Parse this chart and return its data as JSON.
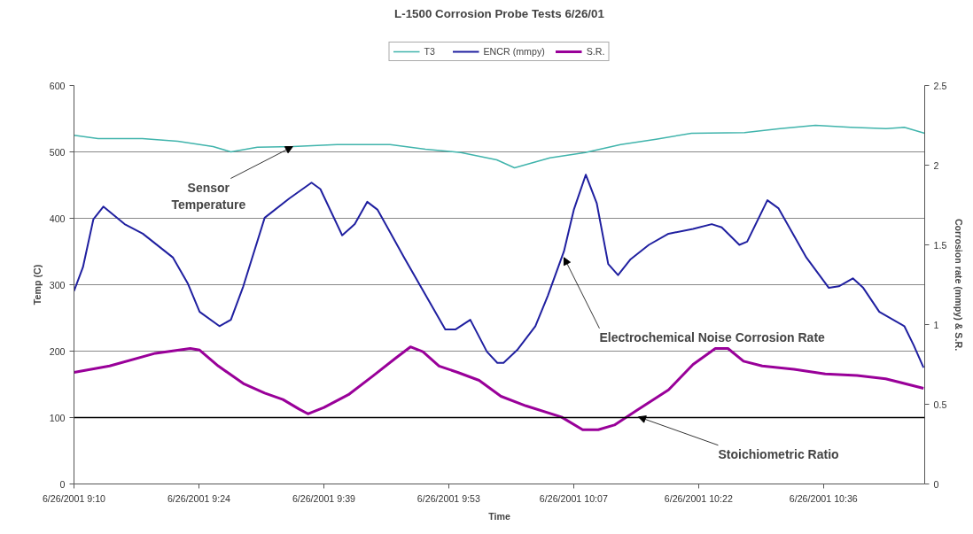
{
  "chart_data": {
    "type": "line",
    "title": "L-1500 Corrosion Probe Tests 6/26/01",
    "xlabel": "Time",
    "ylabel": "Temp (C)",
    "y2label": "Corrosion rate (mmpy) & S.R.",
    "xlim": [
      "2001-06-26T09:10:00",
      "2001-06-26T10:48:04"
    ],
    "ylim": [
      0,
      600
    ],
    "y2lim": [
      0,
      2.5
    ],
    "xticks": [
      {
        "value": "2001-06-26T09:10:00",
        "label": "6/26/2001 9:10"
      },
      {
        "value": "2001-06-26T09:24:24",
        "label": "6/26/2001 9:24"
      },
      {
        "value": "2001-06-26T09:38:48",
        "label": "6/26/2001 9:39"
      },
      {
        "value": "2001-06-26T09:53:12",
        "label": "6/26/2001 9:53"
      },
      {
        "value": "2001-06-26T10:07:36",
        "label": "6/26/2001 10:07"
      },
      {
        "value": "2001-06-26T10:22:00",
        "label": "6/26/2001 10:22"
      },
      {
        "value": "2001-06-26T10:36:24",
        "label": "6/26/2001 10:36"
      }
    ],
    "yticks": [
      0,
      100,
      200,
      300,
      400,
      500,
      600
    ],
    "y2ticks": [
      0,
      0.5,
      1,
      1.5,
      2,
      2.5
    ],
    "grid": "y",
    "legend": "top",
    "ref_lines": [
      {
        "axis": "y",
        "value": 100,
        "label": null,
        "color": "#000000"
      }
    ],
    "series": [
      {
        "name": "T3",
        "color": "#40b4ac",
        "x": [
          "2001-06-26T09:10:00",
          "2001-06-26T09:12:47",
          "2001-06-26T09:17:53",
          "2001-06-26T09:21:58",
          "2001-06-26T09:26:02",
          "2001-06-26T09:28:05",
          "2001-06-26T09:31:08",
          "2001-06-26T09:35:13",
          "2001-06-26T09:40:19",
          "2001-06-26T09:46:26",
          "2001-06-26T09:50:31",
          "2001-06-26T09:54:36",
          "2001-06-26T09:58:44",
          "2001-06-26T10:00:47",
          "2001-06-26T10:04:52",
          "2001-06-26T10:08:56",
          "2001-06-26T10:13:01",
          "2001-06-26T10:17:06",
          "2001-06-26T10:21:11",
          "2001-06-26T10:27:18",
          "2001-06-26T10:31:23",
          "2001-06-26T10:35:28",
          "2001-06-26T10:39:32",
          "2001-06-26T10:43:37",
          "2001-06-26T10:45:43",
          "2001-06-26T10:48:04"
        ],
        "values": [
          525,
          520,
          520,
          516,
          508,
          500,
          507,
          508,
          511,
          511,
          504,
          499,
          488,
          476,
          491,
          499,
          511,
          519,
          528,
          529,
          535,
          540,
          537,
          535,
          537,
          528
        ]
      },
      {
        "name": "ENCR (mmpy)",
        "color": "#2020a0",
        "axis": "y2",
        "x": [
          "2001-06-26T09:10:00",
          "2001-06-26T09:11:02",
          "2001-06-26T09:12:14",
          "2001-06-26T09:13:23",
          "2001-06-26T09:15:50",
          "2001-06-26T09:17:56",
          "2001-06-26T09:21:25",
          "2001-06-26T09:23:06",
          "2001-06-26T09:24:29",
          "2001-06-26T09:26:46",
          "2001-06-26T09:28:05",
          "2001-06-26T09:29:31",
          "2001-06-26T09:31:59",
          "2001-06-26T09:34:48",
          "2001-06-26T09:37:23",
          "2001-06-26T09:38:24",
          "2001-06-26T09:40:55",
          "2001-06-26T09:42:22",
          "2001-06-26T09:43:48",
          "2001-06-26T09:45:00",
          "2001-06-26T09:48:04",
          "2001-06-26T09:52:48",
          "2001-06-26T09:54:00",
          "2001-06-26T09:55:41",
          "2001-06-26T09:57:36",
          "2001-06-26T09:58:48",
          "2001-06-26T09:59:31",
          "2001-06-26T10:01:05",
          "2001-06-26T10:03:11",
          "2001-06-26T10:04:37",
          "2001-06-26T10:06:29",
          "2001-06-26T10:07:37",
          "2001-06-26T10:09:00",
          "2001-06-26T10:10:16",
          "2001-06-26T10:11:35",
          "2001-06-26T10:12:43",
          "2001-06-26T10:14:10",
          "2001-06-26T10:16:16",
          "2001-06-26T10:18:32",
          "2001-06-26T10:21:22",
          "2001-06-26T10:23:31",
          "2001-06-26T10:24:40",
          "2001-06-26T10:26:42",
          "2001-06-26T10:27:36",
          "2001-06-26T10:29:56",
          "2001-06-26T10:31:12",
          "2001-06-26T10:34:26",
          "2001-06-26T10:37:01",
          "2001-06-26T10:38:10",
          "2001-06-26T10:39:47",
          "2001-06-26T10:40:59",
          "2001-06-26T10:42:50",
          "2001-06-26T10:45:43",
          "2001-06-26T10:46:48",
          "2001-06-26T10:47:56"
        ],
        "values": [
          1.21,
          1.36,
          1.66,
          1.74,
          1.63,
          1.57,
          1.42,
          1.26,
          1.08,
          0.99,
          1.03,
          1.24,
          1.67,
          1.79,
          1.89,
          1.85,
          1.56,
          1.63,
          1.77,
          1.72,
          1.42,
          0.97,
          0.97,
          1.03,
          0.83,
          0.76,
          0.76,
          0.84,
          0.99,
          1.18,
          1.46,
          1.72,
          1.94,
          1.76,
          1.38,
          1.31,
          1.41,
          1.5,
          1.57,
          1.6,
          1.63,
          1.61,
          1.5,
          1.52,
          1.78,
          1.73,
          1.42,
          1.23,
          1.24,
          1.29,
          1.23,
          1.08,
          0.99,
          0.87,
          0.73
        ]
      },
      {
        "name": "S.R.",
        "color": "#990099",
        "axis": "y2",
        "x": [
          "2001-06-26T09:10:00",
          "2001-06-26T09:14:06",
          "2001-06-26T09:19:23",
          "2001-06-26T09:23:24",
          "2001-06-26T09:24:29",
          "2001-06-26T09:26:38",
          "2001-06-26T09:29:31",
          "2001-06-26T09:31:59",
          "2001-06-26T09:34:05",
          "2001-06-26T09:35:56",
          "2001-06-26T09:36:58",
          "2001-06-26T09:38:49",
          "2001-06-26T09:41:38",
          "2001-06-26T09:44:31",
          "2001-06-26T09:47:06",
          "2001-06-26T09:48:47",
          "2001-06-26T09:50:13",
          "2001-06-26T09:52:05",
          "2001-06-26T09:54:14",
          "2001-06-26T09:56:42",
          "2001-06-26T09:59:13",
          "2001-06-26T10:02:06",
          "2001-06-26T10:06:11",
          "2001-06-26T10:08:38",
          "2001-06-26T10:10:26",
          "2001-06-26T10:12:18",
          "2001-06-26T10:14:49",
          "2001-06-26T10:18:32",
          "2001-06-26T10:21:22",
          "2001-06-26T10:23:56",
          "2001-06-26T10:25:23",
          "2001-06-26T10:27:11",
          "2001-06-26T10:29:20",
          "2001-06-26T10:33:00",
          "2001-06-26T10:36:36",
          "2001-06-26T10:40:16",
          "2001-06-26T10:43:34",
          "2001-06-26T10:47:56"
        ],
        "values": [
          0.7,
          0.74,
          0.82,
          0.85,
          0.84,
          0.74,
          0.63,
          0.57,
          0.53,
          0.47,
          0.44,
          0.48,
          0.56,
          0.68,
          0.79,
          0.86,
          0.83,
          0.74,
          0.7,
          0.65,
          0.55,
          0.49,
          0.42,
          0.34,
          0.34,
          0.37,
          0.46,
          0.59,
          0.75,
          0.85,
          0.85,
          0.77,
          0.74,
          0.72,
          0.69,
          0.68,
          0.66,
          0.6
        ]
      }
    ],
    "annotations": [
      {
        "text": "Sensor\nTemperature",
        "x": "2001-06-26T09:35:13",
        "y": 508
      },
      {
        "text": "Electrochemical Noise Corrosion Rate",
        "x": "2001-06-26T10:06:29",
        "y": 341
      },
      {
        "text": "Stoichiometric Ratio",
        "x": "2001-06-26T10:15:04",
        "y": 101
      }
    ]
  }
}
